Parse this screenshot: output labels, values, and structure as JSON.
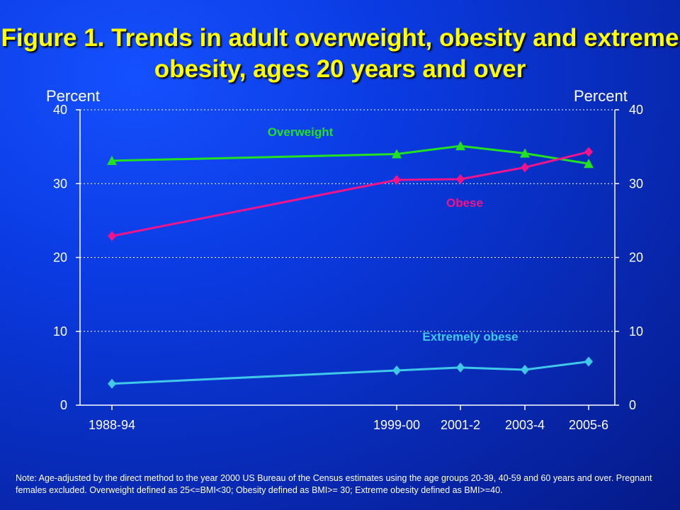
{
  "chart_data": {
    "type": "line",
    "title": "Figure 1. Trends in adult overweight, obesity and extreme obesity, ages 20 years and over",
    "xlabel": "",
    "ylabel": "Percent",
    "ylabel_right": "Percent",
    "ylim": [
      0,
      40
    ],
    "yticks": [
      0,
      10,
      20,
      30,
      40
    ],
    "grid": true,
    "categories": [
      "1988-94",
      "1999-00",
      "2001-2",
      "2003-4",
      "2005-6"
    ],
    "series": [
      {
        "name": "Overweight",
        "color": "#22e022",
        "marker": "triangle",
        "values": [
          33.1,
          34.0,
          35.1,
          34.1,
          32.7
        ]
      },
      {
        "name": "Obese",
        "color": "#f0148c",
        "marker": "diamond",
        "values": [
          22.9,
          30.5,
          30.6,
          32.2,
          34.3
        ]
      },
      {
        "name": "Extremely obese",
        "color": "#40c8e8",
        "marker": "diamond",
        "values": [
          2.9,
          4.7,
          5.1,
          4.8,
          5.9
        ]
      }
    ]
  },
  "note": "Note: Age-adjusted by the direct method to the year 2000 US Bureau of the Census estimates using the age groups 20-39, 40-59 and 60 years and over. Pregnant females excluded. Overweight defined as 25<=BMI<30; Obesity defined as BMI>= 30; Extreme obesity defined as BMI>=40."
}
